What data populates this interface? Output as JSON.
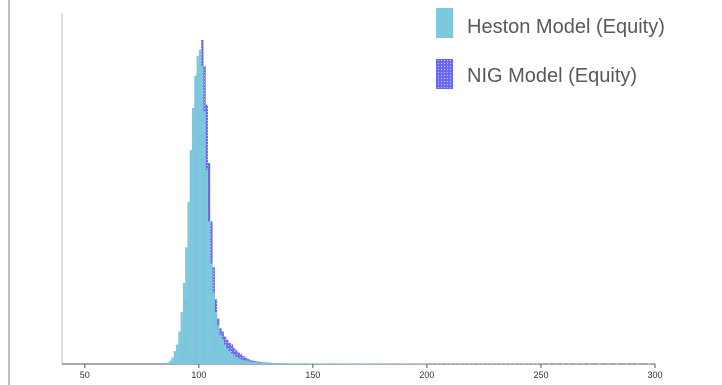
{
  "chart_data": {
    "type": "bar",
    "subtype": "overlaid-histogram",
    "title": "",
    "xlabel": "",
    "ylabel": "",
    "xlim": [
      40,
      300
    ],
    "ylim": [
      0,
      1
    ],
    "x_ticks": [
      50,
      100,
      150,
      200,
      250,
      300
    ],
    "x_tick_labels": [
      "50",
      "100",
      "150",
      "200",
      "250",
      "300"
    ],
    "y_axis_labels_shown": false,
    "grid": false,
    "legend_position": "top-right",
    "legend": [
      {
        "label": "Heston Model (Equity)",
        "color": "#7cc8dc",
        "swatch": "solid"
      },
      {
        "label": "NIG Model (Equity)",
        "color": "#6a6af0",
        "swatch": "dotted"
      }
    ],
    "bin_width": 1,
    "series": [
      {
        "name": "Heston Model (Equity)",
        "color": "#7cc8dc",
        "bins": [
          [
            86,
            0.005
          ],
          [
            87,
            0.01
          ],
          [
            88,
            0.02
          ],
          [
            89,
            0.04
          ],
          [
            90,
            0.06
          ],
          [
            91,
            0.1
          ],
          [
            92,
            0.16
          ],
          [
            93,
            0.25
          ],
          [
            94,
            0.36
          ],
          [
            95,
            0.5
          ],
          [
            96,
            0.66
          ],
          [
            97,
            0.79
          ],
          [
            98,
            0.89
          ],
          [
            99,
            0.95
          ],
          [
            100,
            0.97
          ],
          [
            101,
            0.92
          ],
          [
            102,
            0.78
          ],
          [
            103,
            0.6
          ],
          [
            104,
            0.44
          ],
          [
            105,
            0.31
          ],
          [
            106,
            0.22
          ],
          [
            107,
            0.16
          ],
          [
            108,
            0.12
          ],
          [
            109,
            0.09
          ],
          [
            110,
            0.075
          ],
          [
            111,
            0.06
          ],
          [
            112,
            0.048
          ],
          [
            113,
            0.04
          ],
          [
            114,
            0.033
          ],
          [
            115,
            0.027
          ],
          [
            116,
            0.022
          ],
          [
            117,
            0.018
          ],
          [
            118,
            0.015
          ],
          [
            119,
            0.012
          ],
          [
            120,
            0.01
          ],
          [
            121,
            0.009
          ],
          [
            122,
            0.008
          ],
          [
            123,
            0.007
          ],
          [
            124,
            0.006
          ],
          [
            125,
            0.006
          ],
          [
            126,
            0.005
          ],
          [
            127,
            0.005
          ],
          [
            128,
            0.004
          ],
          [
            129,
            0.004
          ],
          [
            130,
            0.004
          ],
          [
            131,
            0.003
          ],
          [
            132,
            0.003
          ],
          [
            133,
            0.003
          ],
          [
            134,
            0.003
          ],
          [
            135,
            0.003
          ],
          [
            136,
            0.002
          ],
          [
            137,
            0.002
          ],
          [
            138,
            0.002
          ],
          [
            139,
            0.002
          ],
          [
            140,
            0.002
          ],
          [
            141,
            0.002
          ],
          [
            142,
            0.002
          ],
          [
            143,
            0.002
          ],
          [
            144,
            0.002
          ],
          [
            145,
            0.002
          ],
          [
            146,
            0.002
          ],
          [
            147,
            0.002
          ],
          [
            148,
            0.002
          ],
          [
            149,
            0.002
          ],
          [
            150,
            0.002
          ],
          [
            151,
            0.002
          ],
          [
            152,
            0.002
          ],
          [
            153,
            0.001
          ],
          [
            154,
            0.002
          ],
          [
            155,
            0.001
          ],
          [
            156,
            0.002
          ],
          [
            157,
            0.001
          ],
          [
            158,
            0.001
          ],
          [
            159,
            0.002
          ],
          [
            160,
            0.001
          ],
          [
            161,
            0.001
          ],
          [
            162,
            0.002
          ],
          [
            163,
            0.001
          ],
          [
            164,
            0.001
          ],
          [
            165,
            0.001
          ],
          [
            166,
            0.002
          ],
          [
            167,
            0.001
          ],
          [
            168,
            0.001
          ],
          [
            169,
            0.001
          ],
          [
            170,
            0.001
          ],
          [
            171,
            0.001
          ],
          [
            172,
            0.002
          ],
          [
            173,
            0.001
          ],
          [
            174,
            0.001
          ],
          [
            175,
            0.001
          ],
          [
            176,
            0.001
          ],
          [
            177,
            0.001
          ],
          [
            178,
            0.001
          ],
          [
            179,
            0.001
          ],
          [
            180,
            0.002
          ],
          [
            181,
            0.001
          ],
          [
            182,
            0.001
          ],
          [
            183,
            0.001
          ],
          [
            184,
            0.001
          ],
          [
            185,
            0.001
          ],
          [
            186,
            0.001
          ],
          [
            187,
            0.001
          ],
          [
            188,
            0.001
          ],
          [
            189,
            0.001
          ],
          [
            190,
            0.001
          ],
          [
            191,
            0.001
          ],
          [
            192,
            0.001
          ],
          [
            193,
            0.001
          ],
          [
            194,
            0.001
          ],
          [
            195,
            0.001
          ],
          [
            196,
            0.001
          ],
          [
            197,
            0.001
          ],
          [
            198,
            0.001
          ],
          [
            199,
            0.001
          ],
          [
            200,
            0.001
          ],
          [
            202,
            0.001
          ],
          [
            204,
            0.001
          ],
          [
            206,
            0.001
          ],
          [
            208,
            0.001
          ],
          [
            210,
            0.001
          ],
          [
            212,
            0.001
          ],
          [
            214,
            0.001
          ],
          [
            216,
            0.001
          ],
          [
            218,
            0.001
          ],
          [
            220,
            0.001
          ],
          [
            222,
            0.001
          ],
          [
            224,
            0.001
          ],
          [
            226,
            0.001
          ],
          [
            228,
            0.001
          ],
          [
            230,
            0.001
          ],
          [
            232,
            0.001
          ],
          [
            234,
            0.001
          ],
          [
            236,
            0.001
          ],
          [
            238,
            0.001
          ],
          [
            240,
            0.001
          ],
          [
            242,
            0.001
          ],
          [
            244,
            0.001
          ],
          [
            246,
            0.001
          ],
          [
            248,
            0.001
          ],
          [
            250,
            0.001
          ],
          [
            253,
            0.001
          ],
          [
            256,
            0.001
          ],
          [
            259,
            0.001
          ],
          [
            262,
            0.001
          ],
          [
            265,
            0.001
          ],
          [
            268,
            0.001
          ],
          [
            271,
            0.001
          ],
          [
            275,
            0.001
          ],
          [
            279,
            0.001
          ],
          [
            283,
            0.001
          ],
          [
            287,
            0.001
          ],
          [
            292,
            0.001
          ],
          [
            297,
            0.001
          ]
        ]
      },
      {
        "name": "NIG Model (Equity)",
        "color": "#6a6af0",
        "bins": [
          [
            88,
            0.005
          ],
          [
            89,
            0.01
          ],
          [
            90,
            0.02
          ],
          [
            91,
            0.04
          ],
          [
            92,
            0.07
          ],
          [
            93,
            0.12
          ],
          [
            94,
            0.2
          ],
          [
            95,
            0.32
          ],
          [
            96,
            0.48
          ],
          [
            97,
            0.66
          ],
          [
            98,
            0.8
          ],
          [
            99,
            0.9
          ],
          [
            100,
            0.95
          ],
          [
            101,
            1.0
          ],
          [
            102,
            0.92
          ],
          [
            103,
            0.8
          ],
          [
            104,
            0.62
          ],
          [
            105,
            0.44
          ],
          [
            106,
            0.3
          ],
          [
            107,
            0.2
          ],
          [
            108,
            0.14
          ],
          [
            109,
            0.11
          ],
          [
            110,
            0.1
          ],
          [
            111,
            0.085
          ],
          [
            112,
            0.075
          ],
          [
            113,
            0.065
          ],
          [
            114,
            0.06
          ],
          [
            115,
            0.05
          ],
          [
            116,
            0.042
          ],
          [
            117,
            0.035
          ],
          [
            118,
            0.03
          ],
          [
            119,
            0.025
          ],
          [
            120,
            0.02
          ],
          [
            121,
            0.016
          ],
          [
            122,
            0.013
          ],
          [
            123,
            0.011
          ],
          [
            124,
            0.009
          ],
          [
            125,
            0.008
          ],
          [
            126,
            0.007
          ],
          [
            127,
            0.006
          ],
          [
            128,
            0.005
          ],
          [
            129,
            0.005
          ],
          [
            130,
            0.004
          ],
          [
            131,
            0.004
          ],
          [
            132,
            0.003
          ],
          [
            133,
            0.003
          ],
          [
            134,
            0.003
          ],
          [
            135,
            0.003
          ],
          [
            136,
            0.002
          ],
          [
            137,
            0.002
          ],
          [
            138,
            0.002
          ],
          [
            139,
            0.002
          ],
          [
            140,
            0.002
          ],
          [
            142,
            0.002
          ],
          [
            144,
            0.002
          ],
          [
            146,
            0.002
          ],
          [
            148,
            0.001
          ],
          [
            150,
            0.001
          ],
          [
            153,
            0.001
          ],
          [
            156,
            0.001
          ],
          [
            160,
            0.001
          ],
          [
            165,
            0.001
          ],
          [
            170,
            0.001
          ],
          [
            175,
            0.001
          ],
          [
            180,
            0.001
          ],
          [
            190,
            0.001
          ],
          [
            200,
            0.001
          ]
        ]
      }
    ]
  },
  "left_edge_glyph": ")"
}
